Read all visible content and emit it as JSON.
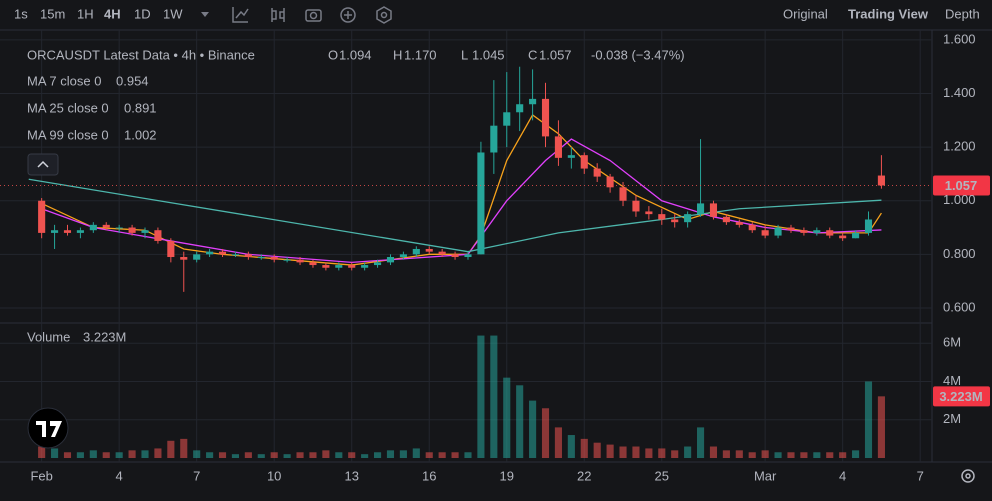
{
  "toolbar": {
    "intervals": [
      "1s",
      "15m",
      "1H",
      "4H",
      "1D",
      "1W"
    ],
    "active_interval": 3,
    "views": [
      "Original",
      "Trading View",
      "Depth"
    ],
    "active_view": 1
  },
  "chart_data": {
    "type": "candlestick",
    "title": "ORCAUSDT Latest Data • 4h • Binance",
    "ohlc_legend": [
      {
        "key": "O",
        "label": "1.094"
      },
      {
        "key": "H",
        "label": "1.170"
      },
      {
        "key": "L",
        "label": "1.045"
      },
      {
        "key": "C",
        "label": "1.057"
      }
    ],
    "change_label": "-0.038 (−3.47%)",
    "up_color": "#26a69a",
    "down_color": "#ef5350",
    "x": [
      0,
      0.5,
      1,
      1.5,
      2,
      2.5,
      3,
      3.5,
      4,
      4.5,
      5,
      5.5,
      6,
      6.5,
      7,
      7.5,
      8,
      8.5,
      9,
      9.5,
      10,
      10.5,
      11,
      11.5,
      12,
      12.5,
      13,
      13.5,
      14,
      14.5,
      15,
      15.5,
      16,
      16.5,
      17,
      17.5,
      18,
      18.5,
      19,
      19.5,
      20,
      20.5,
      21,
      21.5,
      22,
      22.5,
      23,
      23.5,
      24,
      24.5,
      25,
      25.5,
      26,
      26.5,
      27,
      27.5,
      28,
      28.5,
      29,
      29.5,
      30,
      30.5,
      31,
      31.5,
      32,
      32.5
    ],
    "candles": [
      [
        1.0,
        1.01,
        0.86,
        0.88
      ],
      [
        0.88,
        0.91,
        0.82,
        0.89
      ],
      [
        0.89,
        0.91,
        0.87,
        0.88
      ],
      [
        0.88,
        0.9,
        0.86,
        0.89
      ],
      [
        0.89,
        0.92,
        0.88,
        0.91
      ],
      [
        0.91,
        0.92,
        0.89,
        0.9
      ],
      [
        0.9,
        0.91,
        0.88,
        0.9
      ],
      [
        0.9,
        0.91,
        0.87,
        0.88
      ],
      [
        0.88,
        0.9,
        0.86,
        0.89
      ],
      [
        0.89,
        0.9,
        0.84,
        0.85
      ],
      [
        0.85,
        0.86,
        0.77,
        0.79
      ],
      [
        0.79,
        0.81,
        0.66,
        0.78
      ],
      [
        0.78,
        0.81,
        0.77,
        0.8
      ],
      [
        0.8,
        0.82,
        0.79,
        0.81
      ],
      [
        0.81,
        0.82,
        0.79,
        0.8
      ],
      [
        0.8,
        0.81,
        0.79,
        0.8
      ],
      [
        0.8,
        0.81,
        0.78,
        0.79
      ],
      [
        0.79,
        0.8,
        0.78,
        0.79
      ],
      [
        0.79,
        0.8,
        0.77,
        0.78
      ],
      [
        0.78,
        0.79,
        0.77,
        0.78
      ],
      [
        0.78,
        0.79,
        0.76,
        0.77
      ],
      [
        0.77,
        0.78,
        0.75,
        0.76
      ],
      [
        0.76,
        0.77,
        0.74,
        0.75
      ],
      [
        0.75,
        0.77,
        0.74,
        0.76
      ],
      [
        0.76,
        0.77,
        0.74,
        0.75
      ],
      [
        0.75,
        0.77,
        0.74,
        0.76
      ],
      [
        0.76,
        0.78,
        0.75,
        0.77
      ],
      [
        0.77,
        0.8,
        0.76,
        0.79
      ],
      [
        0.79,
        0.81,
        0.78,
        0.8
      ],
      [
        0.8,
        0.83,
        0.79,
        0.82
      ],
      [
        0.82,
        0.83,
        0.8,
        0.81
      ],
      [
        0.81,
        0.82,
        0.79,
        0.8
      ],
      [
        0.8,
        0.81,
        0.78,
        0.79
      ],
      [
        0.79,
        0.81,
        0.78,
        0.8
      ],
      [
        0.8,
        1.22,
        0.8,
        1.18
      ],
      [
        1.18,
        1.45,
        1.1,
        1.28
      ],
      [
        1.28,
        1.48,
        1.2,
        1.33
      ],
      [
        1.33,
        1.5,
        1.26,
        1.36
      ],
      [
        1.36,
        1.49,
        1.3,
        1.38
      ],
      [
        1.38,
        1.44,
        1.2,
        1.24
      ],
      [
        1.24,
        1.3,
        1.13,
        1.16
      ],
      [
        1.16,
        1.2,
        1.12,
        1.17
      ],
      [
        1.17,
        1.18,
        1.1,
        1.12
      ],
      [
        1.12,
        1.14,
        1.07,
        1.09
      ],
      [
        1.09,
        1.1,
        1.03,
        1.05
      ],
      [
        1.05,
        1.07,
        0.98,
        1.0
      ],
      [
        1.0,
        1.02,
        0.94,
        0.96
      ],
      [
        0.96,
        0.98,
        0.93,
        0.95
      ],
      [
        0.95,
        0.97,
        0.91,
        0.93
      ],
      [
        0.93,
        0.95,
        0.9,
        0.92
      ],
      [
        0.92,
        0.96,
        0.9,
        0.95
      ],
      [
        0.95,
        1.23,
        0.94,
        0.99
      ],
      [
        0.99,
        1.0,
        0.93,
        0.94
      ],
      [
        0.94,
        0.95,
        0.91,
        0.92
      ],
      [
        0.92,
        0.93,
        0.9,
        0.91
      ],
      [
        0.91,
        0.92,
        0.88,
        0.89
      ],
      [
        0.89,
        0.91,
        0.86,
        0.87
      ],
      [
        0.87,
        0.91,
        0.86,
        0.9
      ],
      [
        0.9,
        0.91,
        0.88,
        0.89
      ],
      [
        0.89,
        0.9,
        0.87,
        0.88
      ],
      [
        0.88,
        0.9,
        0.87,
        0.89
      ],
      [
        0.89,
        0.9,
        0.86,
        0.87
      ],
      [
        0.87,
        0.88,
        0.85,
        0.86
      ],
      [
        0.86,
        0.89,
        0.86,
        0.88
      ],
      [
        0.88,
        0.96,
        0.87,
        0.93
      ],
      [
        1.094,
        1.17,
        1.045,
        1.057
      ]
    ],
    "last_price_label": "1.057",
    "ma": [
      {
        "name": "MA 7 close 0",
        "value": 0.954,
        "color": "#f7a21b",
        "x": [
          0,
          2,
          4,
          5.5,
          7,
          12,
          15,
          16.5,
          17,
          18,
          19,
          20,
          21,
          23,
          25,
          26,
          28,
          30,
          32,
          32.5
        ],
        "values": [
          0.99,
          0.9,
          0.89,
          0.82,
          0.8,
          0.76,
          0.8,
          0.8,
          0.87,
          1.15,
          1.32,
          1.25,
          1.15,
          1.02,
          0.93,
          0.96,
          0.91,
          0.88,
          0.88,
          0.954
        ]
      },
      {
        "name": "MA 25 close 0",
        "value": 0.891,
        "color": "#e040fb",
        "x": [
          0,
          2,
          5,
          8,
          12,
          16.5,
          18,
          19.5,
          20.5,
          22,
          24,
          26,
          28,
          30,
          32.5
        ],
        "values": [
          0.97,
          0.9,
          0.85,
          0.8,
          0.77,
          0.8,
          1.0,
          1.15,
          1.23,
          1.15,
          1.0,
          0.94,
          0.9,
          0.88,
          0.891
        ]
      },
      {
        "name": "MA 99 close 0",
        "value": 1.002,
        "color": "#4db6ac",
        "x": [
          -0.5,
          16.5,
          20,
          24,
          27,
          32.5
        ],
        "values": [
          1.08,
          0.81,
          0.88,
          0.93,
          0.97,
          1.002
        ]
      }
    ],
    "xlim": [
      -1.07,
      34.38
    ],
    "xticks": [
      {
        "value": 0,
        "label": "Feb"
      },
      {
        "value": 3,
        "label": "4"
      },
      {
        "value": 6,
        "label": "7"
      },
      {
        "value": 9,
        "label": "10"
      },
      {
        "value": 12,
        "label": "13"
      },
      {
        "value": 15,
        "label": "16"
      },
      {
        "value": 18,
        "label": "19"
      },
      {
        "value": 21,
        "label": "22"
      },
      {
        "value": 24,
        "label": "25"
      },
      {
        "value": 28,
        "label": "Mar"
      },
      {
        "value": 31,
        "label": "4"
      },
      {
        "value": 34,
        "label": "7"
      }
    ],
    "ylim": [
      0.555,
      1.637
    ],
    "yticks": [
      {
        "value": 0.6,
        "label": "0.600"
      },
      {
        "value": 0.8,
        "label": "0.800"
      },
      {
        "value": 1.0,
        "label": "1.000"
      },
      {
        "value": 1.2,
        "label": "1.200"
      },
      {
        "value": 1.4,
        "label": "1.400"
      },
      {
        "value": 1.6,
        "label": "1.600"
      }
    ],
    "volume": {
      "name": "Volume",
      "label": "3.223M",
      "values": [
        0.6,
        0.5,
        0.3,
        0.3,
        0.4,
        0.3,
        0.3,
        0.4,
        0.4,
        0.5,
        0.9,
        1.0,
        0.4,
        0.3,
        0.3,
        0.2,
        0.3,
        0.2,
        0.3,
        0.2,
        0.3,
        0.3,
        0.4,
        0.3,
        0.3,
        0.2,
        0.3,
        0.4,
        0.4,
        0.5,
        0.3,
        0.3,
        0.3,
        0.3,
        6.4,
        6.4,
        4.2,
        3.8,
        3.0,
        2.6,
        1.6,
        1.2,
        1.0,
        0.8,
        0.7,
        0.6,
        0.6,
        0.5,
        0.5,
        0.4,
        0.6,
        1.6,
        0.6,
        0.4,
        0.4,
        0.3,
        0.4,
        0.3,
        0.3,
        0.3,
        0.3,
        0.3,
        0.3,
        0.4,
        4.0,
        3.223
      ],
      "ylim": [
        0,
        6.9
      ],
      "yticks": [
        {
          "value": 2,
          "label": "2M"
        },
        {
          "value": 4,
          "label": "4M"
        },
        {
          "value": 6,
          "label": "6M"
        }
      ]
    },
    "grid": true
  }
}
